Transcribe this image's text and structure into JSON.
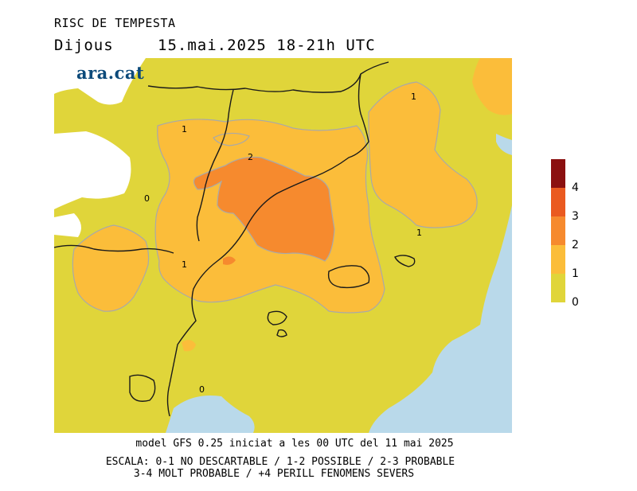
{
  "header": {
    "title": "RISC DE TEMPESTA",
    "day": "Dijous",
    "date": "15.mai.2025  18-21h UTC"
  },
  "logo": {
    "text": "ara.cat"
  },
  "map": {
    "contour_labels": [
      "1",
      "2",
      "0",
      "1",
      "1",
      "1",
      "0"
    ],
    "colors": {
      "sea": "#b9d9ea",
      "level_0_1": "#e0d53a",
      "level_1_2": "#fbbd3a",
      "level_2_3": "#f68a2e",
      "level_3_4": "#ea5a20",
      "level_4_plus": "#8b1010",
      "border": "#1a1a1a",
      "contour": "#a9a9a9"
    }
  },
  "legend": {
    "labels": [
      "4",
      "3",
      "2",
      "1",
      "0"
    ]
  },
  "footer": {
    "model": "model GFS 0.25 iniciat a les 00 UTC del 11 mai 2025",
    "scale_line1": "ESCALA: 0-1 NO DESCARTABLE / 1-2 POSSIBLE / 2-3 PROBABLE",
    "scale_line2": "3-4 MOLT PROBABLE / +4 PERILL FENOMENS SEVERS"
  }
}
